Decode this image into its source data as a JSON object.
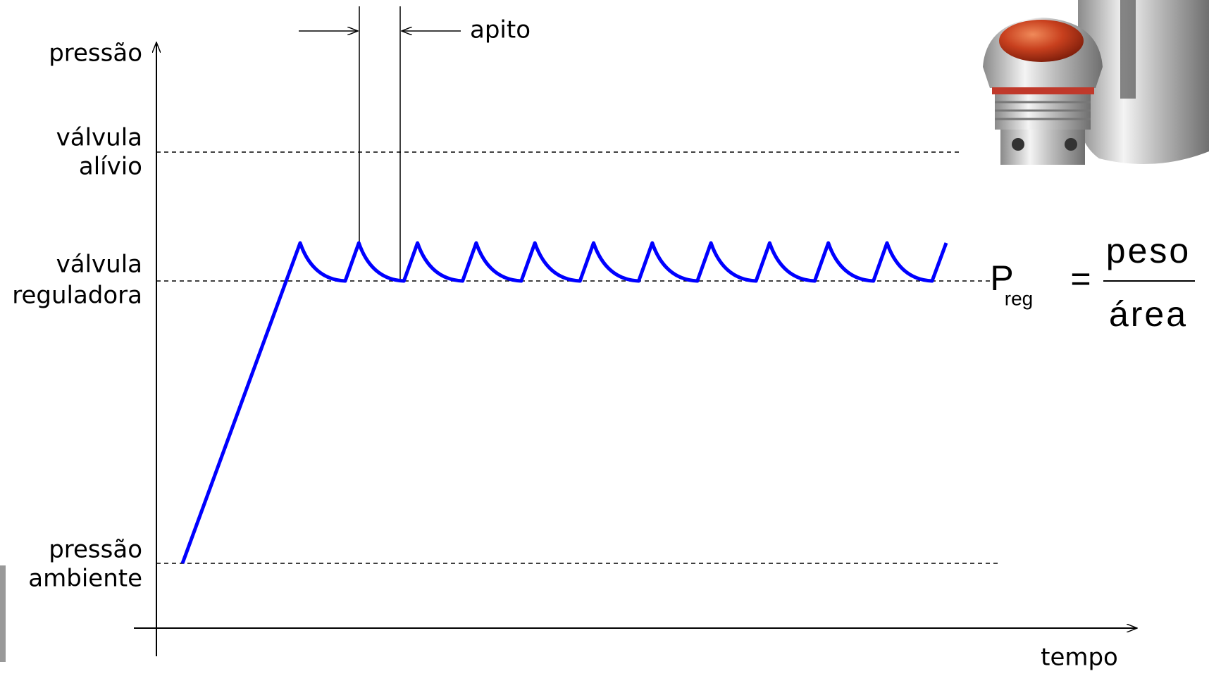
{
  "axes": {
    "y_label": "pressão",
    "x_label": "tempo"
  },
  "levels": [
    {
      "lines": [
        "válvula",
        "alívio"
      ]
    },
    {
      "lines": [
        "válvula",
        "reguladora"
      ]
    },
    {
      "lines": [
        "pressão",
        "ambiente"
      ]
    }
  ],
  "annotation": "apito",
  "formula": {
    "lhs": "P",
    "subscript": "reg",
    "operator": "=",
    "numerator": "peso",
    "denominator": "área"
  }
}
